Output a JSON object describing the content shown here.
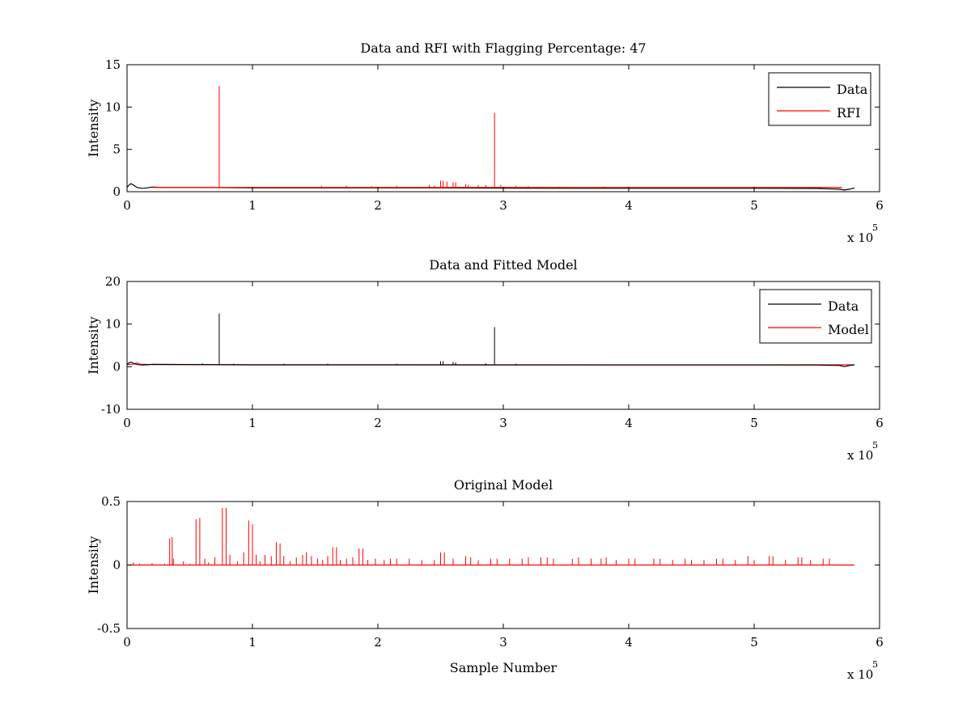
{
  "window": {
    "title": ""
  },
  "chart_data": [
    {
      "type": "line",
      "title": "Data and RFI with Flagging Percentage: 47",
      "xlabel": "",
      "ylabel": "Intensity",
      "xlim": [
        0,
        6
      ],
      "ylim": [
        0,
        15
      ],
      "xticks": [
        "0",
        "1",
        "2",
        "3",
        "4",
        "5",
        "6"
      ],
      "yticks": [
        "0",
        "5",
        "10",
        "15"
      ],
      "x_multiplier": {
        "base": "x 10",
        "exponent": "5"
      },
      "legend": {
        "position": "top-right",
        "entries": [
          "Data",
          "RFI"
        ]
      },
      "grid": false,
      "series": [
        {
          "name": "Data",
          "color": "#000000",
          "points": [
            [
              0,
              0.5
            ],
            [
              0.01,
              0.7
            ],
            [
              0.03,
              0.95
            ],
            [
              0.05,
              0.8
            ],
            [
              0.08,
              0.5
            ],
            [
              0.12,
              0.4
            ],
            [
              0.16,
              0.45
            ],
            [
              0.2,
              0.55
            ],
            [
              0.3,
              0.5
            ],
            [
              0.6,
              0.5
            ],
            [
              1.0,
              0.45
            ],
            [
              1.5,
              0.45
            ],
            [
              2.0,
              0.45
            ],
            [
              2.5,
              0.45
            ],
            [
              3.0,
              0.42
            ],
            [
              3.5,
              0.4
            ],
            [
              4.0,
              0.4
            ],
            [
              4.5,
              0.4
            ],
            [
              5.0,
              0.4
            ],
            [
              5.5,
              0.38
            ],
            [
              5.68,
              0.3
            ],
            [
              5.72,
              0.2
            ],
            [
              5.76,
              0.3
            ],
            [
              5.8,
              0.45
            ]
          ]
        },
        {
          "name": "RFI",
          "color": "#ff0000",
          "spikes": [
            [
              0.735,
              12.5
            ],
            [
              2.93,
              9.3
            ],
            [
              2.5,
              1.3
            ],
            [
              2.52,
              1.3
            ],
            [
              2.55,
              1.2
            ],
            [
              2.6,
              1.1
            ],
            [
              2.62,
              1.1
            ],
            [
              2.7,
              0.9
            ],
            [
              2.72,
              0.8
            ],
            [
              2.8,
              0.8
            ],
            [
              2.86,
              0.8
            ],
            [
              2.98,
              0.8
            ],
            [
              2.41,
              0.8
            ],
            [
              2.45,
              0.7
            ],
            [
              1.55,
              0.7
            ],
            [
              1.75,
              0.7
            ],
            [
              1.95,
              0.65
            ],
            [
              2.15,
              0.7
            ],
            [
              3.1,
              0.7
            ],
            [
              3.2,
              0.65
            ],
            [
              3.45,
              0.6
            ],
            [
              3.8,
              0.6
            ],
            [
              4.2,
              0.55
            ],
            [
              4.5,
              0.5
            ],
            [
              5.35,
              0.5
            ]
          ],
          "baseline": {
            "x_range": [
              0.2,
              5.7
            ],
            "y": 0.5
          }
        }
      ]
    },
    {
      "type": "line",
      "title": "Data and Fitted Model",
      "xlabel": "",
      "ylabel": "Intensity",
      "xlim": [
        0,
        6
      ],
      "ylim": [
        -10,
        20
      ],
      "xticks": [
        "0",
        "1",
        "2",
        "3",
        "4",
        "5",
        "6"
      ],
      "yticks": [
        "-10",
        "0",
        "10",
        "20"
      ],
      "x_multiplier": {
        "base": "x 10",
        "exponent": "5"
      },
      "legend": {
        "position": "top-right",
        "entries": [
          "Data",
          "Model"
        ]
      },
      "grid": false,
      "series": [
        {
          "name": "Model",
          "color": "#ff0000",
          "points": [
            [
              0,
              0.5
            ],
            [
              0.05,
              0.6
            ],
            [
              0.08,
              0.9
            ],
            [
              0.1,
              0.6
            ],
            [
              0.2,
              0.5
            ],
            [
              1.0,
              0.45
            ],
            [
              2.0,
              0.45
            ],
            [
              3.0,
              0.45
            ],
            [
              4.0,
              0.45
            ],
            [
              5.0,
              0.45
            ],
            [
              5.8,
              0.45
            ]
          ]
        },
        {
          "name": "Data",
          "color": "#000000",
          "points": [
            [
              0,
              0.5
            ],
            [
              0.01,
              0.8
            ],
            [
              0.03,
              1.1
            ],
            [
              0.05,
              0.8
            ],
            [
              0.08,
              0.5
            ],
            [
              0.12,
              0.4
            ],
            [
              0.16,
              0.45
            ],
            [
              0.2,
              0.55
            ],
            [
              0.6,
              0.5
            ],
            [
              1.0,
              0.45
            ],
            [
              2.0,
              0.45
            ],
            [
              3.0,
              0.42
            ],
            [
              4.0,
              0.4
            ],
            [
              5.0,
              0.4
            ],
            [
              5.5,
              0.38
            ],
            [
              5.68,
              0.3
            ],
            [
              5.72,
              0.0
            ],
            [
              5.76,
              0.3
            ],
            [
              5.8,
              0.45
            ]
          ],
          "spikes": [
            [
              0.735,
              12.5
            ],
            [
              2.93,
              9.3
            ],
            [
              2.5,
              1.3
            ],
            [
              2.52,
              1.3
            ],
            [
              2.6,
              1.1
            ],
            [
              2.62,
              1.0
            ],
            [
              2.86,
              0.8
            ],
            [
              3.1,
              0.7
            ],
            [
              0.6,
              0.8
            ],
            [
              0.85,
              0.7
            ],
            [
              1.25,
              0.7
            ],
            [
              1.6,
              0.7
            ],
            [
              2.15,
              0.7
            ]
          ]
        }
      ]
    },
    {
      "type": "line",
      "title": "Original Model",
      "xlabel": "Sample Number",
      "ylabel": "Intensity",
      "xlim": [
        0,
        6
      ],
      "ylim": [
        -0.5,
        0.5
      ],
      "xticks": [
        "0",
        "1",
        "2",
        "3",
        "4",
        "5",
        "6"
      ],
      "yticks": [
        "-0.5",
        "0",
        "0.5"
      ],
      "x_multiplier": {
        "base": "x 10",
        "exponent": "5"
      },
      "legend": null,
      "grid": false,
      "series": [
        {
          "name": "",
          "color": "#ff0000",
          "spikes": [
            [
              0.05,
              0.02
            ],
            [
              0.1,
              0.01
            ],
            [
              0.2,
              0.015
            ],
            [
              0.3,
              0.01
            ],
            [
              0.34,
              0.21
            ],
            [
              0.36,
              0.22
            ],
            [
              0.37,
              0.05
            ],
            [
              0.45,
              0.03
            ],
            [
              0.5,
              0.01
            ],
            [
              0.55,
              0.36
            ],
            [
              0.58,
              0.37
            ],
            [
              0.62,
              0.05
            ],
            [
              0.65,
              0.02
            ],
            [
              0.7,
              0.06
            ],
            [
              0.76,
              0.45
            ],
            [
              0.79,
              0.45
            ],
            [
              0.82,
              0.08
            ],
            [
              0.88,
              0.03
            ],
            [
              0.93,
              0.1
            ],
            [
              0.97,
              0.35
            ],
            [
              1.0,
              0.32
            ],
            [
              1.03,
              0.08
            ],
            [
              1.06,
              0.03
            ],
            [
              1.1,
              0.08
            ],
            [
              1.15,
              0.07
            ],
            [
              1.19,
              0.18
            ],
            [
              1.22,
              0.17
            ],
            [
              1.25,
              0.07
            ],
            [
              1.3,
              0.03
            ],
            [
              1.35,
              0.06
            ],
            [
              1.4,
              0.08
            ],
            [
              1.43,
              0.1
            ],
            [
              1.47,
              0.07
            ],
            [
              1.52,
              0.05
            ],
            [
              1.56,
              0.04
            ],
            [
              1.6,
              0.07
            ],
            [
              1.64,
              0.14
            ],
            [
              1.67,
              0.14
            ],
            [
              1.7,
              0.04
            ],
            [
              1.75,
              0.05
            ],
            [
              1.8,
              0.06
            ],
            [
              1.85,
              0.13
            ],
            [
              1.88,
              0.13
            ],
            [
              1.92,
              0.04
            ],
            [
              1.98,
              0.05
            ],
            [
              2.05,
              0.04
            ],
            [
              2.1,
              0.05
            ],
            [
              2.15,
              0.05
            ],
            [
              2.25,
              0.05
            ],
            [
              2.35,
              0.04
            ],
            [
              2.45,
              0.04
            ],
            [
              2.5,
              0.1
            ],
            [
              2.53,
              0.1
            ],
            [
              2.6,
              0.05
            ],
            [
              2.7,
              0.07
            ],
            [
              2.74,
              0.06
            ],
            [
              2.8,
              0.04
            ],
            [
              2.9,
              0.05
            ],
            [
              2.95,
              0.05
            ],
            [
              3.05,
              0.05
            ],
            [
              3.15,
              0.05
            ],
            [
              3.2,
              0.06
            ],
            [
              3.3,
              0.06
            ],
            [
              3.35,
              0.06
            ],
            [
              3.4,
              0.05
            ],
            [
              3.55,
              0.05
            ],
            [
              3.6,
              0.06
            ],
            [
              3.7,
              0.05
            ],
            [
              3.78,
              0.05
            ],
            [
              3.82,
              0.06
            ],
            [
              3.9,
              0.04
            ],
            [
              4.0,
              0.05
            ],
            [
              4.05,
              0.05
            ],
            [
              4.2,
              0.05
            ],
            [
              4.25,
              0.05
            ],
            [
              4.35,
              0.04
            ],
            [
              4.45,
              0.05
            ],
            [
              4.5,
              0.04
            ],
            [
              4.6,
              0.04
            ],
            [
              4.7,
              0.05
            ],
            [
              4.75,
              0.05
            ],
            [
              4.85,
              0.04
            ],
            [
              4.95,
              0.07
            ],
            [
              5.0,
              0.04
            ],
            [
              5.12,
              0.07
            ],
            [
              5.15,
              0.07
            ],
            [
              5.25,
              0.04
            ],
            [
              5.35,
              0.06
            ],
            [
              5.38,
              0.06
            ],
            [
              5.45,
              0.04
            ],
            [
              5.55,
              0.05
            ],
            [
              5.6,
              0.05
            ]
          ],
          "baseline": {
            "x_range": [
              0.0,
              5.8
            ],
            "y": 0.0
          }
        }
      ]
    }
  ]
}
